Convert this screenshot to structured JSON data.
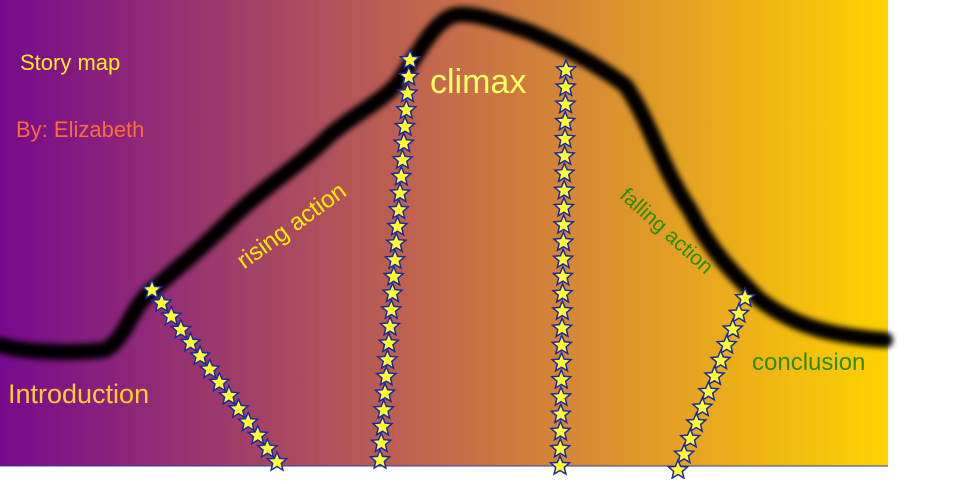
{
  "header": {
    "title": "Story map",
    "author": "By: Elizabeth"
  },
  "labels": {
    "climax": "climax",
    "rising_action": "rising action",
    "falling_action": "falling action",
    "conclusion": "conclusion",
    "introduction": "Introduction"
  }
}
